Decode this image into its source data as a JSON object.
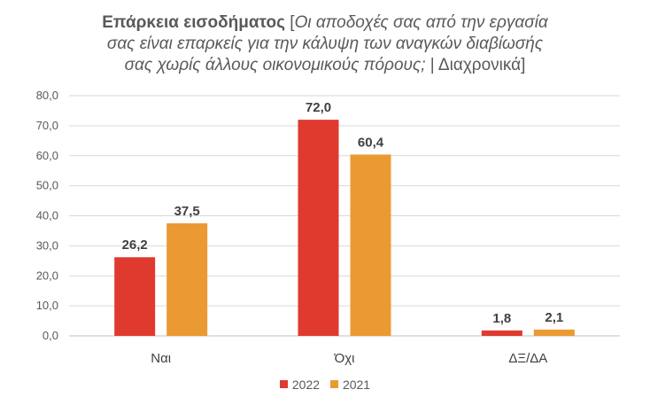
{
  "chart_data": {
    "type": "bar",
    "title_bold": "Επάρκεια εισοδήματος",
    "title_italic_1": "Οι αποδοχές σας από την εργασία",
    "title_italic_2": "σας είναι επαρκείς για την κάλυψη των αναγκών διαβίωσής",
    "title_italic_3": "σας χωρίς άλλους οικονομικούς πόρους;",
    "title_tail": "| Διαχρονικά]",
    "title_bracket": "[",
    "categories": [
      "Ναι",
      "Όχι",
      "ΔΞ/ΔΑ"
    ],
    "series": [
      {
        "name": "2022",
        "values": [
          26.2,
          72.0,
          1.8
        ],
        "color": "#e03a2f"
      },
      {
        "name": "2021",
        "values": [
          37.5,
          60.4,
          2.1
        ],
        "color": "#eb9a33"
      }
    ],
    "ylim": [
      0,
      80
    ],
    "yticks": [
      "0,0",
      "10,0",
      "20,0",
      "30,0",
      "40,0",
      "50,0",
      "60,0",
      "70,0",
      "80,0"
    ],
    "data_labels": [
      [
        "26,2",
        "72,0",
        "1,8"
      ],
      [
        "37,5",
        "60,4",
        "2,1"
      ]
    ],
    "grid": true,
    "legend": "bottom"
  }
}
